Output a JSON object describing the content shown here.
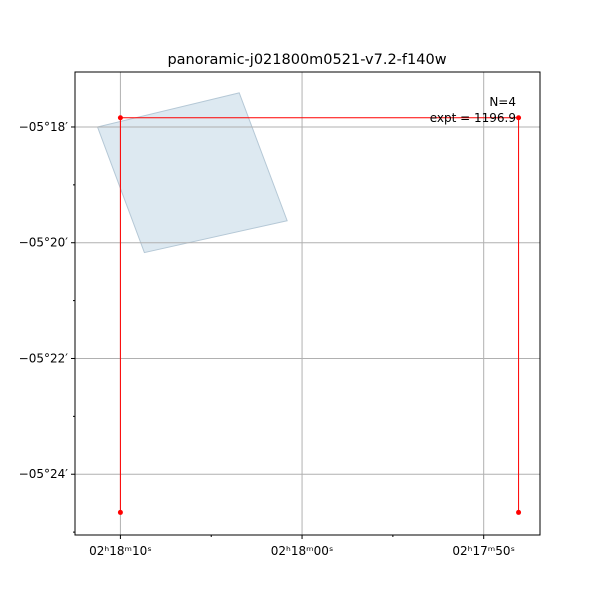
{
  "chart_data": {
    "type": "footprint",
    "title": "panoramic-j021800m0521-v7.2-f140w",
    "xlim": [
      12.5,
      -13.1
    ],
    "ylim": [
      -25.05,
      -17.05
    ],
    "xticks": [
      {
        "value": 10,
        "label": "02ʰ18ᵐ10ˢ"
      },
      {
        "value": 0,
        "label": "02ʰ18ᵐ00ˢ"
      },
      {
        "value": -10,
        "label": "02ʰ17ᵐ50ˢ"
      }
    ],
    "yticks": [
      {
        "value": -18,
        "label": "−05°18′"
      },
      {
        "value": -20,
        "label": "−05°20′"
      },
      {
        "value": -22,
        "label": "−05°22′"
      },
      {
        "value": -24,
        "label": "−05°24′"
      }
    ],
    "xminorticks": [
      5,
      -5
    ],
    "yminorticks": [
      -19,
      -21,
      -23,
      -25
    ],
    "grid": true,
    "polygon": {
      "color": "#dde9f1",
      "x": [
        11.26,
        3.46,
        0.82,
        8.68
      ],
      "y": [
        -18.0,
        -17.41,
        -19.62,
        -20.17
      ]
    },
    "path": {
      "color": "#ff0000",
      "x": [
        10,
        10,
        -11.92,
        -11.92
      ],
      "y": [
        -24.66,
        -17.84,
        -17.84,
        -24.66
      ]
    },
    "annotations": [
      "N=4",
      "expt = 1196.9"
    ]
  }
}
